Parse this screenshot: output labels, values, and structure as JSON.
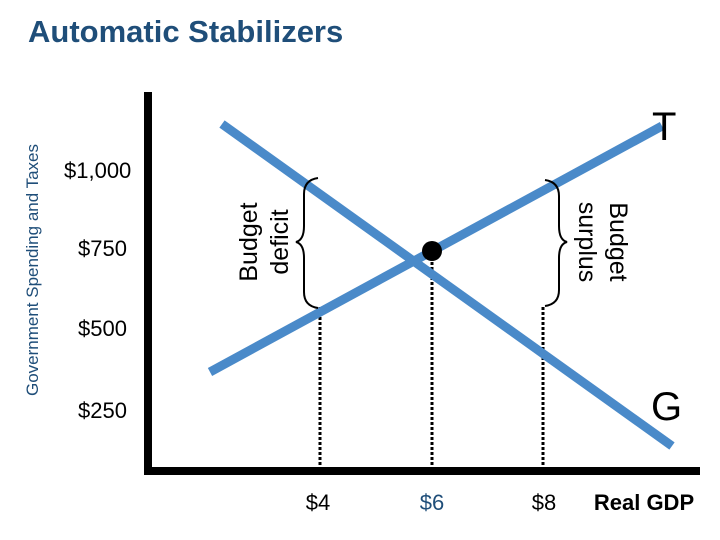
{
  "title": "Automatic Stabilizers",
  "y_axis_label": "Government Spending and Taxes",
  "y_ticks": [
    "$1,000",
    "$750",
    "$500",
    "$250"
  ],
  "x_ticks": [
    "$4",
    "$6",
    "$8"
  ],
  "x_axis_label": "Real GDP",
  "curves": {
    "tax": "T",
    "spending": "G"
  },
  "brackets": {
    "deficit_line1": "Budget",
    "deficit_line2": "deficit",
    "surplus_line1": "Budget",
    "surplus_line2": "surplus"
  },
  "colors": {
    "lines": "#4a8ac9",
    "title": "#1f4e79",
    "axes": "#000000"
  }
}
